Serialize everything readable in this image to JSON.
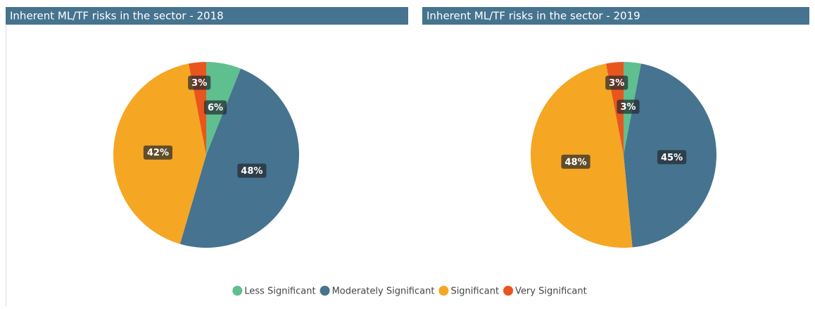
{
  "chart_data": [
    {
      "type": "pie",
      "title": "Inherent ML/TF risks in the sector - 2018",
      "categories": [
        "Less Significant",
        "Moderately Significant",
        "Significant",
        "Very Significant"
      ],
      "values": [
        6,
        48,
        42,
        3
      ],
      "value_labels": [
        "6%",
        "48%",
        "42%",
        "3%"
      ],
      "colors": [
        "#5fbf8f",
        "#46738f",
        "#f5a623",
        "#e8561e"
      ]
    },
    {
      "type": "pie",
      "title": "Inherent ML/TF risks in the sector - 2019",
      "categories": [
        "Less Significant",
        "Moderately Significant",
        "Significant",
        "Very Significant"
      ],
      "values": [
        3,
        45,
        48,
        3
      ],
      "value_labels": [
        "3%",
        "45%",
        "48%",
        "3%"
      ],
      "colors": [
        "#5fbf8f",
        "#46738f",
        "#f5a623",
        "#e8561e"
      ]
    }
  ]
}
